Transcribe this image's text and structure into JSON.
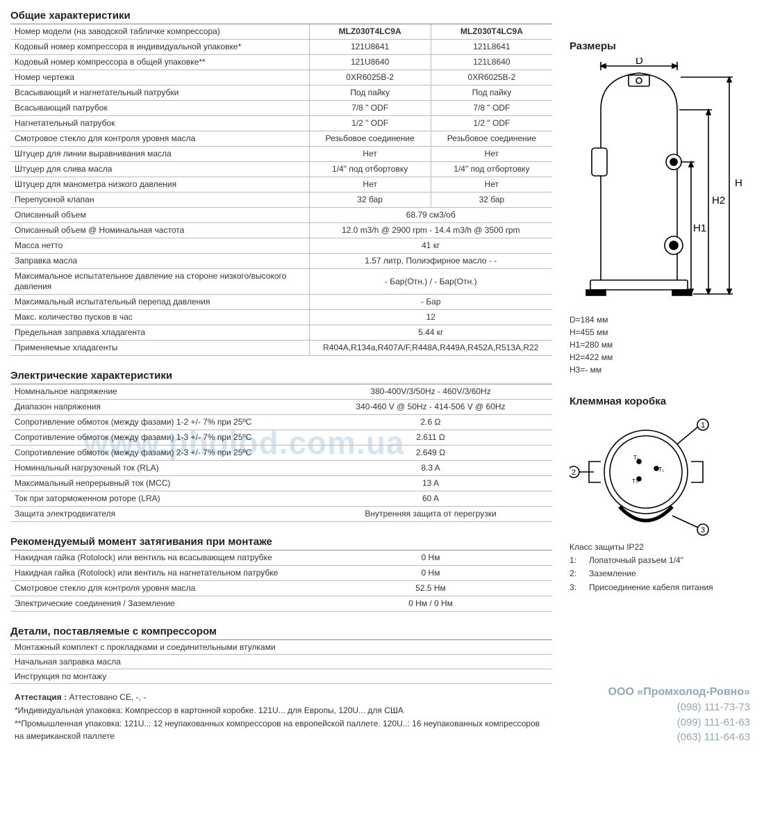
{
  "watermark": "www.pholod.com.ua",
  "sections": {
    "general": {
      "title": "Общие характеристики",
      "header": [
        "MLZ030T4LC9A",
        "MLZ030T4LC9A"
      ],
      "rows3": [
        {
          "label": "Номер модели (на заводской табличке компрессора)",
          "v1": "MLZ030T4LC9A",
          "v2": "MLZ030T4LC9A",
          "header": true
        },
        {
          "label": "Кодовый номер компрессора в индивидуальной упаковке*",
          "v1": "121U8641",
          "v2": "121L8641"
        },
        {
          "label": "Кодовый номер компрессора в общей упаковке**",
          "v1": "121U8640",
          "v2": "121L8640"
        },
        {
          "label": "Номер чертежа",
          "v1": "0XR6025B-2",
          "v2": "0XR6025B-2"
        },
        {
          "label": "Всасывающий и нагнетательный патрубки",
          "v1": "Под пайку",
          "v2": "Под пайку"
        },
        {
          "label": "Всасывающий патрубок",
          "v1": "7/8 \" ODF",
          "v2": "7/8 \" ODF"
        },
        {
          "label": "Нагнетательный патрубок",
          "v1": "1/2 \" ODF",
          "v2": "1/2 \" ODF"
        },
        {
          "label": "Смотровое стекло для контроля уровня масла",
          "v1": "Резьбовое соединение",
          "v2": "Резьбовое соединение"
        },
        {
          "label": "Штуцер для линии выравнивания масла",
          "v1": "Нет",
          "v2": "Нет"
        },
        {
          "label": "Штуцер для слива масла",
          "v1": "1/4\" под отбортовку",
          "v2": "1/4\" под отбортовку"
        },
        {
          "label": "Штуцер для манометра низкого давления",
          "v1": "Нет",
          "v2": "Нет"
        },
        {
          "label": "Перепускной клапан",
          "v1": "32 бар",
          "v2": "32 бар"
        }
      ],
      "rows2": [
        {
          "label": "Описанный объем",
          "v": "68.79 см3/об"
        },
        {
          "label": "Описанный объем @ Номинальная частота",
          "v": "12.0 m3/h @ 2900 rpm - 14.4 m3/h @ 3500 rpm"
        },
        {
          "label": "Масса нетто",
          "v": "41 кг"
        },
        {
          "label": "Заправка масла",
          "v": "1.57 литр, Полиэфирное масло - -"
        },
        {
          "label": "Максимальное испытательное давление на стороне низкого/высокого давления",
          "v": "- Бар(Отн.) / - Бар(Отн.)"
        },
        {
          "label": "Максимальный испытательный перепад давления",
          "v": "- Бар"
        },
        {
          "label": "Макс. количество пусков в час",
          "v": "12"
        },
        {
          "label": "Предельная заправка хладагента",
          "v": "5.44 кг"
        },
        {
          "label": "Применяемые хладагенты",
          "v": "R404A,R134a,R407A/F,R448A,R449A,R452A,R513A,R22"
        }
      ]
    },
    "electrical": {
      "title": "Электрические характеристики",
      "rows": [
        {
          "label": "Номинальное напряжение",
          "v": "380-400V/3/50Hz - 460V/3/60Hz"
        },
        {
          "label": "Диапазон напряжения",
          "v": "340-460 V @ 50Hz - 414-506 V @ 60Hz"
        },
        {
          "label": "Сопротивление обмоток (между фазами) 1-2 +/- 7% при 25ºC",
          "v": "2.6 Ω"
        },
        {
          "label": "Сопротивление обмоток (между фазами) 1-3 +/- 7% при 25ºC",
          "v": "2.611 Ω"
        },
        {
          "label": "Сопротивление обмоток (между фазами) 2-3 +/- 7% при 25ºC",
          "v": "2.649 Ω"
        },
        {
          "label": "Номинальный нагрузочный ток (RLA)",
          "v": "8.3 A"
        },
        {
          "label": "Максимальный непрерывный ток (MCC)",
          "v": "13 A"
        },
        {
          "label": "Ток при заторможенном роторе (LRA)",
          "v": "60 A"
        },
        {
          "label": "Защита электродвигателя",
          "v": "Внутренняя защита от перегрузки"
        }
      ]
    },
    "torque": {
      "title": "Рекомендуемый момент затягивания при монтаже",
      "rows": [
        {
          "label": "Накидная гайка (Rotolock) или вентиль на всасывающем патрубке",
          "v": "0 Нм"
        },
        {
          "label": "Накидная гайка (Rotolock) или вентиль на нагнетательном патрубке",
          "v": "0 Нм"
        },
        {
          "label": "Смотровое стекло для контроля уровня масла",
          "v": "52.5 Нм"
        },
        {
          "label": "Электрические соединения / Заземление",
          "v": "0 Нм / 0 Нм"
        }
      ]
    },
    "parts": {
      "title": "Детали, поставляемые с компрессором",
      "items": [
        "Монтажный комплект с прокладками и соединительными втулками",
        "Начальная заправка масла",
        "Инструкция по монтажу"
      ]
    }
  },
  "footnotes": {
    "attestation_label": "Аттестация :",
    "attestation": "Аттестовано CE, -, -",
    "note1": "*Индивидуальная упаковка: Компрессор в картонной коробке. 121U... для Европы, 120U... для США",
    "note2": "**Промышленная упаковка: 121U..: 12 неупакованных компрессоров на европейской паллете. 120U..: 16 неупакованных компрессоров на американской паллете"
  },
  "dimensions": {
    "title": "Размеры",
    "labels": {
      "D": "D",
      "H": "H",
      "H1": "H1",
      "H2": "H2"
    },
    "values": [
      "D=184 мм",
      "H=455 мм",
      "H1=280 мм",
      "H2=422 мм",
      "H3=- мм"
    ]
  },
  "terminal_box": {
    "title": "Клеммная коробка",
    "ip": "Класс защиты IP22",
    "legend": [
      {
        "n": "1:",
        "t": "Лопаточный разъем 1/4\""
      },
      {
        "n": "2:",
        "t": "Заземление"
      },
      {
        "n": "3:",
        "t": "Присоединение кабеля питания"
      }
    ]
  },
  "company": {
    "name": "ООО «Промхолод-Ровно»",
    "phones": [
      "(098) 111-73-73",
      "(099) 111-61-63",
      "(063) 111-64-63"
    ]
  },
  "colors": {
    "border": "#bbbbbb",
    "title": "#222222",
    "text": "#333333",
    "company": "#94a6b8",
    "watermark": "#d5e4ef"
  }
}
